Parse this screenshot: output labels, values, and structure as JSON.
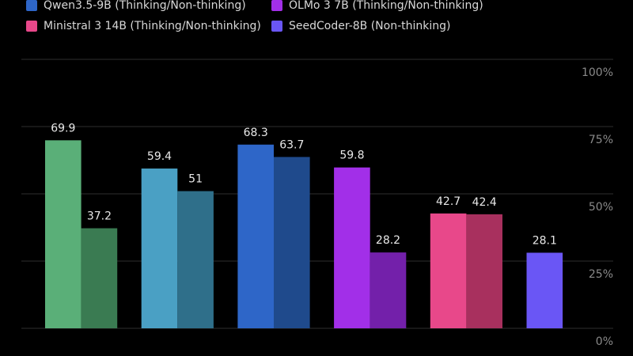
{
  "chart_data": {
    "type": "grouped-bar",
    "groups": [
      {
        "name": null,
        "colors": [
          "#5aaf78",
          "#3a7b52"
        ],
        "values": [
          69.9,
          37.2
        ]
      },
      {
        "name": null,
        "colors": [
          "#4aa0c4",
          "#2f6f8a"
        ],
        "values": [
          59.4,
          51
        ]
      },
      {
        "name": "Qwen3.5-9B (Thinking/Non-thinking)",
        "colors": [
          "#2e66c8",
          "#1f4a8c"
        ],
        "values": [
          68.3,
          63.7
        ]
      },
      {
        "name": "OLMo 3 7B (Thinking/Non-thinking)",
        "colors": [
          "#a22fe8",
          "#7320aa"
        ],
        "values": [
          59.8,
          28.2
        ]
      },
      {
        "name": "Ministral 3 14B (Thinking/Non-thinking)",
        "colors": [
          "#e8488a",
          "#a8305e"
        ],
        "values": [
          42.7,
          42.4
        ]
      },
      {
        "name": "SeedCoder-8B (Non-thinking)",
        "colors": [
          "#6a56f5"
        ],
        "values": [
          28.1
        ]
      }
    ],
    "ylim": [
      0,
      100
    ],
    "yticks": [
      {
        "value": 0,
        "label": "0%"
      },
      {
        "value": 25,
        "label": "25%"
      },
      {
        "value": 50,
        "label": "50%"
      },
      {
        "value": 75,
        "label": "75%"
      },
      {
        "value": 100,
        "label": "100%"
      }
    ],
    "grid": true
  }
}
